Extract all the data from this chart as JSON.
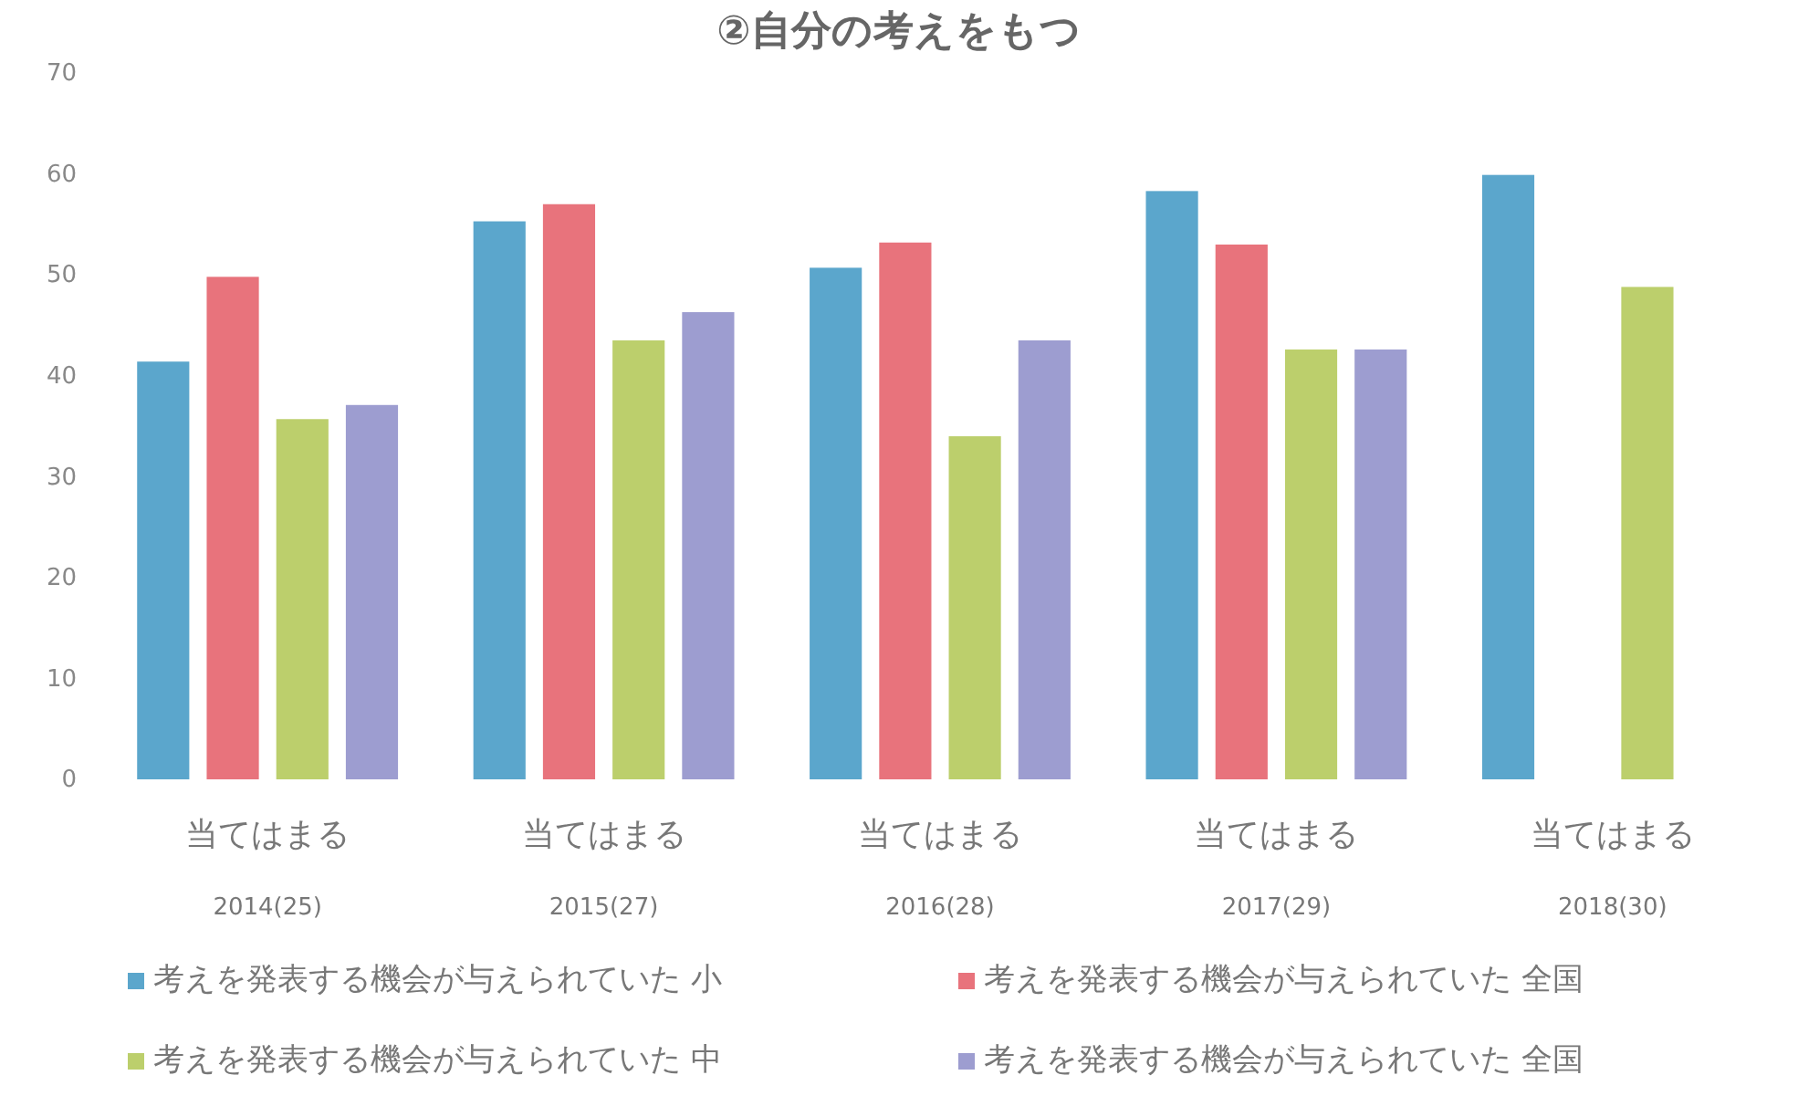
{
  "chart_data": {
    "type": "bar",
    "title": "②自分の考えをもつ",
    "categories": [
      "2014(25)",
      "2015(27)",
      "2016(28)",
      "2017(29)",
      "2018(30)"
    ],
    "annotations": [
      "当てはまる",
      "当てはまる",
      "当てはまる",
      "当てはまる",
      "当てはまる"
    ],
    "series": [
      {
        "name": "考えを発表する機会が与えられていた 小",
        "color": "#5ba6cc",
        "values": [
          41.4,
          55.3,
          50.7,
          58.3,
          59.9
        ]
      },
      {
        "name": "考えを発表する機会が与えられていた 全国",
        "color": "#e8737c",
        "values": [
          49.8,
          57.0,
          53.2,
          53.0,
          null
        ]
      },
      {
        "name": "考えを発表する機会が与えられていた 中",
        "color": "#bccf6c",
        "values": [
          35.7,
          43.5,
          34.0,
          42.6,
          48.8
        ]
      },
      {
        "name": "考えを発表する機会が与えられていた 全国",
        "color": "#9d9dd0",
        "values": [
          37.1,
          46.3,
          43.5,
          42.6,
          null
        ]
      }
    ],
    "ylim": [
      0,
      70
    ],
    "yticks": [
      0,
      10,
      20,
      30,
      40,
      50,
      60,
      70
    ],
    "grid": false,
    "legend": "bottom"
  }
}
